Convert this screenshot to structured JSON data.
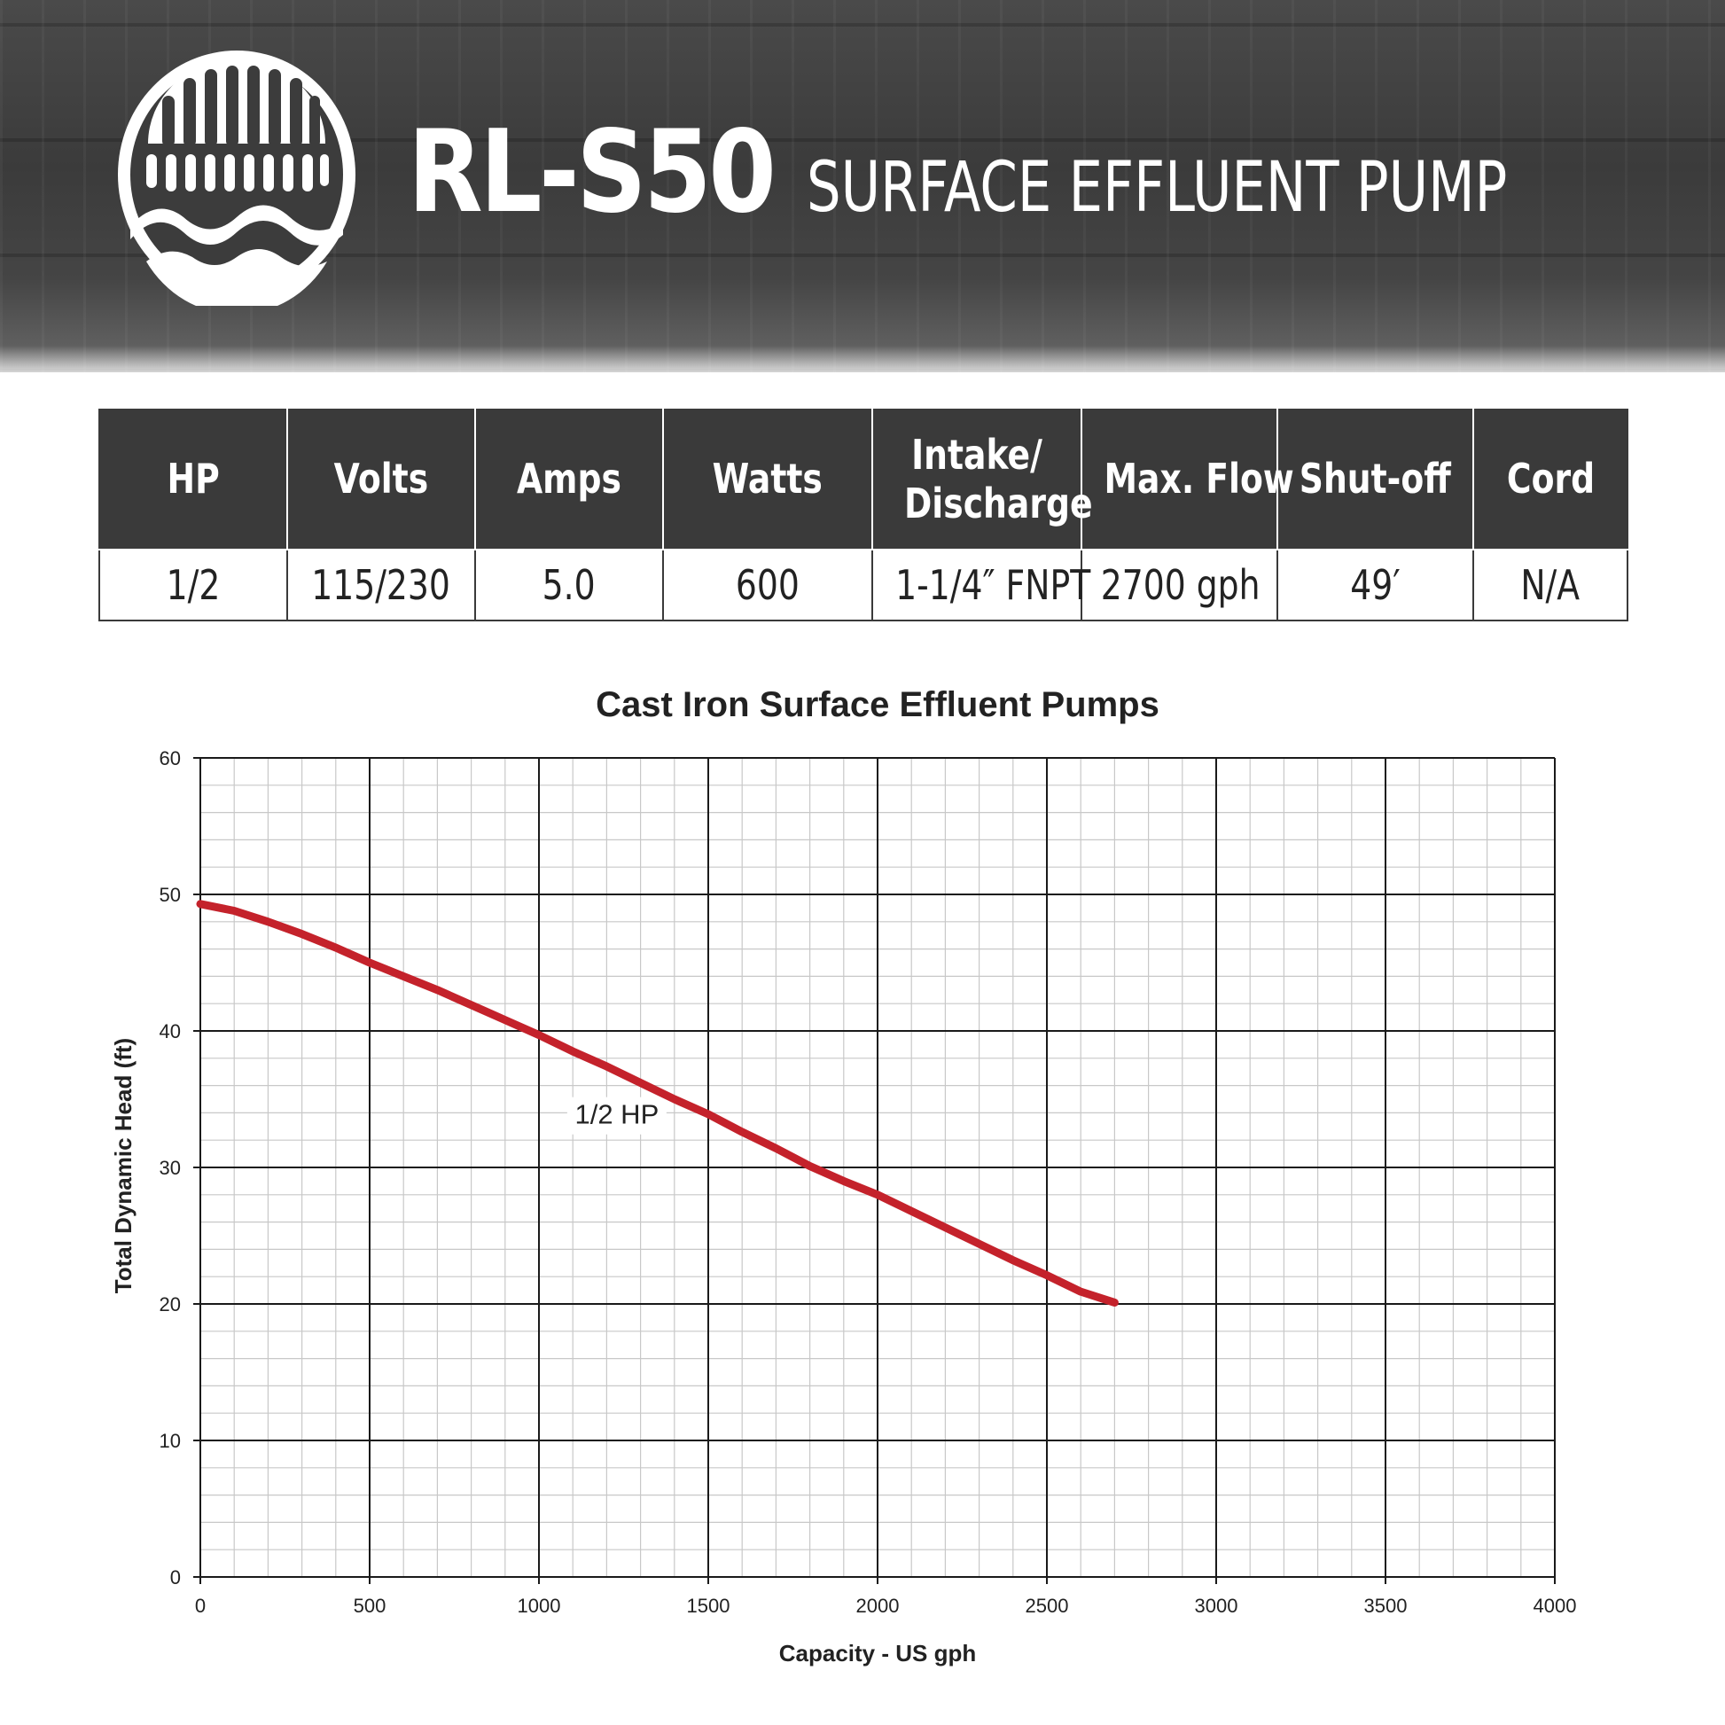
{
  "header": {
    "model": "RL-S50",
    "product_name": "SURFACE EFFLUENT PUMP",
    "logo_icon": "pump-grate-waves-logo"
  },
  "specs": {
    "headers": [
      "HP",
      "Volts",
      "Amps",
      "Watts",
      "Intake/ Discharge",
      "Max. Flow",
      "Shut-off",
      "Cord"
    ],
    "values": [
      "1/2",
      "115/230",
      "5.0",
      "600",
      "1-1/4″ FNPT",
      "2700 gph",
      "49′",
      "N/A"
    ]
  },
  "colors": {
    "header_dark": "#3a3a3a",
    "curve_red": "#c4222b",
    "grid_major": "#1a1a1a",
    "grid_minor": "#c8c8c8"
  },
  "chart_data": {
    "type": "line",
    "title": "Cast Iron Surface Effluent Pumps",
    "xlabel": "Capacity - US gph",
    "ylabel": "Total Dynamic Head (ft)",
    "xlim": [
      0,
      4000
    ],
    "ylim": [
      0,
      60
    ],
    "xticks": [
      0,
      500,
      1000,
      1500,
      2000,
      2500,
      3000,
      3500,
      4000
    ],
    "yticks": [
      0,
      10,
      20,
      30,
      40,
      50,
      60
    ],
    "grid": true,
    "series": [
      {
        "name": "1/2 HP",
        "color": "#c4222b",
        "x": [
          0,
          100,
          200,
          300,
          400,
          500,
          600,
          700,
          800,
          900,
          1000,
          1100,
          1200,
          1300,
          1400,
          1500,
          1600,
          1700,
          1800,
          1900,
          2000,
          2100,
          2200,
          2300,
          2400,
          2500,
          2600,
          2700
        ],
        "y": [
          49.3,
          48.8,
          48.0,
          47.1,
          46.1,
          45.0,
          44.0,
          43.0,
          41.9,
          40.8,
          39.7,
          38.5,
          37.4,
          36.2,
          35.0,
          33.9,
          32.6,
          31.4,
          30.1,
          29.0,
          28.0,
          26.8,
          25.6,
          24.4,
          23.2,
          22.1,
          20.9,
          20.1
        ]
      }
    ]
  }
}
